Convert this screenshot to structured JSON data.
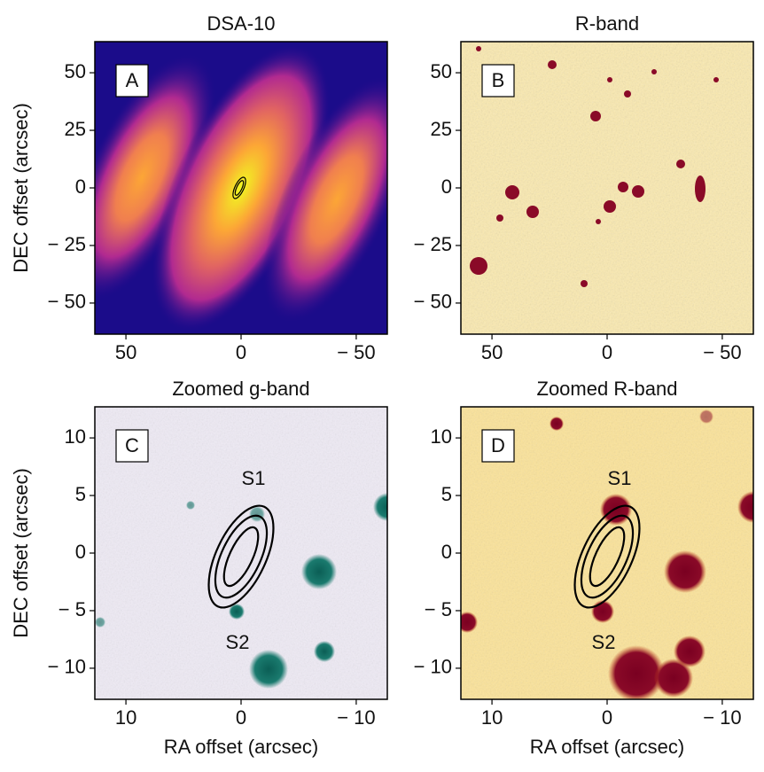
{
  "chart_data": [
    {
      "type": "image",
      "title": "DSA-10",
      "label": "A",
      "ylabel": "DEC offset (arcsec)",
      "xlim": [
        63.5,
        -63.5
      ],
      "ylim": [
        -63.5,
        63.5
      ],
      "xticks": [
        50,
        0,
        {
          "value": -50,
          "label": "− 50"
        }
      ],
      "yticks": [
        {
          "value": -50,
          "label": "− 50"
        },
        {
          "value": -25,
          "label": "− 25"
        },
        0,
        25,
        50
      ]
    },
    {
      "type": "image",
      "title": "R-band",
      "label": "B",
      "xlim": [
        63.5,
        -63.5
      ],
      "ylim": [
        -63.5,
        63.5
      ],
      "xticks": [
        50,
        0,
        {
          "value": -50,
          "label": "− 50"
        }
      ],
      "yticks": [
        {
          "value": -50,
          "label": "− 50"
        },
        {
          "value": -25,
          "label": "− 25"
        },
        0,
        25,
        50
      ]
    },
    {
      "type": "image",
      "title": "Zoomed g-band",
      "label": "C",
      "xlabel": "RA offset (arcsec)",
      "ylabel": "DEC offset (arcsec)",
      "xlim": [
        12.7,
        -12.7
      ],
      "ylim": [
        -12.7,
        12.7
      ],
      "xticks": [
        10,
        0,
        {
          "value": -10,
          "label": "− 10"
        }
      ],
      "yticks": [
        {
          "value": -10,
          "label": "− 10"
        },
        {
          "value": -5,
          "label": "− 5"
        },
        0,
        5,
        10
      ],
      "annotations": [
        "S1",
        "S2"
      ]
    },
    {
      "type": "image",
      "title": "Zoomed R-band",
      "label": "D",
      "xlabel": "RA offset (arcsec)",
      "xlim": [
        12.7,
        -12.7
      ],
      "ylim": [
        -12.7,
        12.7
      ],
      "xticks": [
        10,
        0,
        {
          "value": -10,
          "label": "− 10"
        }
      ],
      "yticks": [
        {
          "value": -10,
          "label": "− 10"
        },
        {
          "value": -5,
          "label": "− 5"
        },
        0,
        5,
        10
      ],
      "annotations": [
        "S1",
        "S2"
      ]
    }
  ]
}
